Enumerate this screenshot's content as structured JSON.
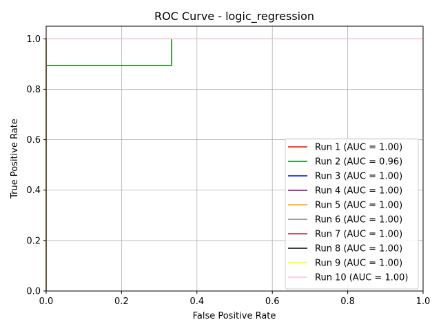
{
  "chart_data": {
    "type": "line",
    "title": "ROC Curve - logic_regression",
    "xlabel": "False Positive Rate",
    "ylabel": "True Positive Rate",
    "xlim": [
      0.0,
      1.0
    ],
    "ylim": [
      0.0,
      1.05
    ],
    "xticks": [
      "0.0",
      "0.2",
      "0.4",
      "0.6",
      "0.8",
      "1.0"
    ],
    "yticks": [
      "0.0",
      "0.2",
      "0.4",
      "0.6",
      "0.8",
      "1.0"
    ],
    "grid": true,
    "legend_position": "lower-right",
    "series": [
      {
        "name": "Run 1 (AUC = 1.00)",
        "color": "#ff0000",
        "x": [
          0.0,
          0.0,
          1.0
        ],
        "y": [
          0.0,
          1.0,
          1.0
        ]
      },
      {
        "name": "Run 2 (AUC = 0.96)",
        "color": "#008000",
        "x": [
          0.0,
          0.0,
          0.333,
          0.333,
          1.0
        ],
        "y": [
          0.0,
          0.895,
          0.895,
          1.0,
          1.0
        ]
      },
      {
        "name": "Run 3 (AUC = 1.00)",
        "color": "#0000ff",
        "x": [
          0.0,
          0.0,
          1.0
        ],
        "y": [
          0.0,
          1.0,
          1.0
        ]
      },
      {
        "name": "Run 4 (AUC = 1.00)",
        "color": "#800080",
        "x": [
          0.0,
          0.0,
          1.0
        ],
        "y": [
          0.0,
          1.0,
          1.0
        ]
      },
      {
        "name": "Run 5 (AUC = 1.00)",
        "color": "#ffa500",
        "x": [
          0.0,
          0.0,
          1.0
        ],
        "y": [
          0.0,
          1.0,
          1.0
        ]
      },
      {
        "name": "Run 6 (AUC = 1.00)",
        "color": "#808080",
        "x": [
          0.0,
          0.0,
          1.0
        ],
        "y": [
          0.0,
          1.0,
          1.0
        ]
      },
      {
        "name": "Run 7 (AUC = 1.00)",
        "color": "#a52a2a",
        "x": [
          0.0,
          0.0,
          1.0
        ],
        "y": [
          0.0,
          1.0,
          1.0
        ]
      },
      {
        "name": "Run 8 (AUC = 1.00)",
        "color": "#000000",
        "x": [
          0.0,
          0.0,
          1.0
        ],
        "y": [
          0.0,
          1.0,
          1.0
        ]
      },
      {
        "name": "Run 9 (AUC = 1.00)",
        "color": "#ffff00",
        "x": [
          0.0,
          0.0,
          1.0
        ],
        "y": [
          0.0,
          1.0,
          1.0
        ]
      },
      {
        "name": "Run 10 (AUC = 1.00)",
        "color": "#ffc0cb",
        "x": [
          0.0,
          0.0,
          1.0
        ],
        "y": [
          0.0,
          1.0,
          1.0
        ]
      }
    ]
  }
}
